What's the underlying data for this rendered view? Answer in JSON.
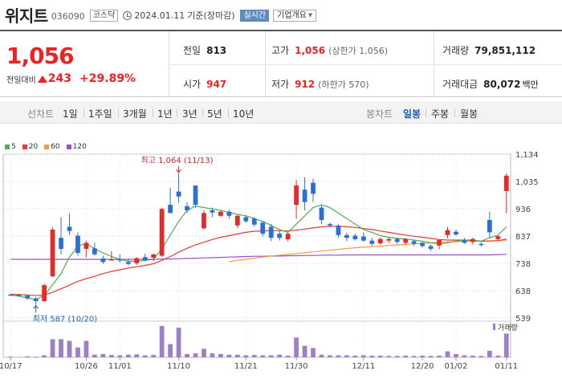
{
  "header": {
    "name": "위지트",
    "code": "036090",
    "market": "코스닥",
    "date": "2024.01.11",
    "status": "기준(장마감)",
    "realtime_label": "실시간",
    "company_label": "기업개요"
  },
  "price": {
    "current": "1,056",
    "change_label": "전일대비",
    "change": "243",
    "change_pct": "+29.89%"
  },
  "stats": {
    "prev_label": "전일",
    "prev": "813",
    "high_label": "고가",
    "high": "1,056",
    "high_sub": "(상한가 1,056)",
    "volume_label": "거래량",
    "volume": "79,851,112",
    "open_label": "시가",
    "open": "947",
    "low_label": "저가",
    "low": "912",
    "low_sub": "(하한가 570)",
    "amount_label": "거래대금",
    "amount": "80,072",
    "amount_unit": "백만"
  },
  "periods": {
    "line_chart": "선차트",
    "items": [
      "1일",
      "1주일",
      "3개월",
      "1년",
      "3년",
      "5년",
      "10년"
    ],
    "candle_chart": "봉차트",
    "candle_items": [
      "일봉",
      "주봉",
      "월봉"
    ],
    "active": "일봉"
  },
  "legend": [
    {
      "label": "5",
      "color": "#4caf50"
    },
    {
      "label": "20",
      "color": "#e53935"
    },
    {
      "label": "60",
      "color": "#f39c3a"
    },
    {
      "label": "120",
      "color": "#9c4fc7"
    }
  ],
  "chart_data": {
    "type": "candlestick",
    "y_ticks": [
      "1,134",
      "1,035",
      "936",
      "837",
      "738",
      "638",
      "539"
    ],
    "ylim": [
      539,
      1134
    ],
    "x_ticks": [
      "10/17",
      "10/26",
      "11/01",
      "11/10",
      "11/21",
      "11/30",
      "12/11",
      "12/20",
      "01/02",
      "01/11"
    ],
    "max_label": "최고 1,064 (11/13)",
    "min_label": "최저 587 (10/20)",
    "volume_label": "거래량",
    "candles": [
      {
        "o": 624,
        "h": 626,
        "l": 620,
        "c": 622
      },
      {
        "o": 623,
        "h": 627,
        "l": 619,
        "c": 621
      },
      {
        "o": 620,
        "h": 623,
        "l": 605,
        "c": 610
      },
      {
        "o": 610,
        "h": 614,
        "l": 587,
        "c": 600
      },
      {
        "o": 600,
        "h": 664,
        "l": 598,
        "c": 658
      },
      {
        "o": 690,
        "h": 868,
        "l": 688,
        "c": 860
      },
      {
        "o": 830,
        "h": 905,
        "l": 770,
        "c": 790
      },
      {
        "o": 870,
        "h": 918,
        "l": 840,
        "c": 855
      },
      {
        "o": 838,
        "h": 850,
        "l": 765,
        "c": 775
      },
      {
        "o": 790,
        "h": 820,
        "l": 760,
        "c": 812
      },
      {
        "o": 792,
        "h": 812,
        "l": 765,
        "c": 770
      },
      {
        "o": 755,
        "h": 765,
        "l": 735,
        "c": 742
      },
      {
        "o": 752,
        "h": 782,
        "l": 748,
        "c": 752
      },
      {
        "o": 752,
        "h": 770,
        "l": 740,
        "c": 748
      },
      {
        "o": 742,
        "h": 754,
        "l": 730,
        "c": 735
      },
      {
        "o": 738,
        "h": 760,
        "l": 732,
        "c": 756
      },
      {
        "o": 760,
        "h": 772,
        "l": 745,
        "c": 748
      },
      {
        "o": 758,
        "h": 772,
        "l": 745,
        "c": 770
      },
      {
        "o": 765,
        "h": 940,
        "l": 760,
        "c": 935
      },
      {
        "o": 950,
        "h": 1012,
        "l": 920,
        "c": 920
      },
      {
        "o": 998,
        "h": 1064,
        "l": 958,
        "c": 980
      },
      {
        "o": 945,
        "h": 960,
        "l": 920,
        "c": 930
      },
      {
        "o": 1020,
        "h": 1020,
        "l": 940,
        "c": 950
      },
      {
        "o": 865,
        "h": 930,
        "l": 860,
        "c": 920
      },
      {
        "o": 930,
        "h": 940,
        "l": 905,
        "c": 922
      },
      {
        "o": 910,
        "h": 930,
        "l": 905,
        "c": 925
      },
      {
        "o": 925,
        "h": 932,
        "l": 900,
        "c": 910
      },
      {
        "o": 875,
        "h": 915,
        "l": 865,
        "c": 910
      },
      {
        "o": 905,
        "h": 912,
        "l": 885,
        "c": 890
      },
      {
        "o": 900,
        "h": 905,
        "l": 870,
        "c": 878
      },
      {
        "o": 885,
        "h": 892,
        "l": 835,
        "c": 845
      },
      {
        "o": 870,
        "h": 880,
        "l": 818,
        "c": 830
      },
      {
        "o": 845,
        "h": 855,
        "l": 820,
        "c": 830
      },
      {
        "o": 825,
        "h": 850,
        "l": 818,
        "c": 845
      },
      {
        "o": 950,
        "h": 1040,
        "l": 900,
        "c": 1020
      },
      {
        "o": 1005,
        "h": 1050,
        "l": 930,
        "c": 960
      },
      {
        "o": 1030,
        "h": 1045,
        "l": 960,
        "c": 990
      },
      {
        "o": 940,
        "h": 950,
        "l": 880,
        "c": 895
      },
      {
        "o": 880,
        "h": 885,
        "l": 868,
        "c": 875
      },
      {
        "o": 875,
        "h": 880,
        "l": 830,
        "c": 840
      },
      {
        "o": 840,
        "h": 848,
        "l": 818,
        "c": 830
      },
      {
        "o": 838,
        "h": 845,
        "l": 820,
        "c": 825
      },
      {
        "o": 835,
        "h": 850,
        "l": 815,
        "c": 820
      },
      {
        "o": 820,
        "h": 830,
        "l": 800,
        "c": 808
      },
      {
        "o": 810,
        "h": 832,
        "l": 805,
        "c": 826
      },
      {
        "o": 820,
        "h": 830,
        "l": 810,
        "c": 826
      },
      {
        "o": 826,
        "h": 830,
        "l": 808,
        "c": 815
      },
      {
        "o": 812,
        "h": 830,
        "l": 805,
        "c": 826
      },
      {
        "o": 818,
        "h": 822,
        "l": 800,
        "c": 808
      },
      {
        "o": 812,
        "h": 818,
        "l": 795,
        "c": 800
      },
      {
        "o": 800,
        "h": 806,
        "l": 782,
        "c": 790
      },
      {
        "o": 802,
        "h": 822,
        "l": 788,
        "c": 822
      },
      {
        "o": 840,
        "h": 870,
        "l": 828,
        "c": 858
      },
      {
        "o": 852,
        "h": 860,
        "l": 838,
        "c": 842
      },
      {
        "o": 822,
        "h": 830,
        "l": 808,
        "c": 812
      },
      {
        "o": 815,
        "h": 830,
        "l": 806,
        "c": 826
      },
      {
        "o": 808,
        "h": 815,
        "l": 798,
        "c": 805
      },
      {
        "o": 895,
        "h": 925,
        "l": 830,
        "c": 850
      },
      {
        "o": 825,
        "h": 838,
        "l": 818,
        "c": 836
      },
      {
        "o": 1000,
        "h": 1064,
        "l": 920,
        "c": 1056
      }
    ],
    "ma5": [
      622,
      618,
      612,
      606,
      620,
      660,
      700,
      760,
      800,
      810,
      790,
      775,
      762,
      752,
      745,
      745,
      748,
      752,
      790,
      840,
      890,
      930,
      945,
      940,
      935,
      930,
      922,
      915,
      910,
      900,
      890,
      875,
      860,
      850,
      880,
      910,
      940,
      950,
      940,
      920,
      900,
      880,
      860,
      850,
      838,
      832,
      828,
      825,
      822,
      818,
      812,
      808,
      812,
      818,
      822,
      822,
      818,
      830,
      840,
      870
    ],
    "ma20": [
      625,
      624,
      622,
      620,
      622,
      632,
      645,
      658,
      672,
      682,
      690,
      700,
      708,
      714,
      720,
      725,
      730,
      736,
      748,
      762,
      778,
      792,
      804,
      814,
      824,
      832,
      838,
      844,
      850,
      854,
      855,
      856,
      856,
      855,
      858,
      862,
      866,
      870,
      872,
      872,
      870,
      868,
      864,
      860,
      855,
      850,
      845,
      840,
      836,
      832,
      828,
      824,
      822,
      822,
      822,
      820,
      818,
      818,
      820,
      825
    ],
    "ma60": [
      null,
      null,
      null,
      null,
      null,
      null,
      null,
      null,
      null,
      null,
      null,
      null,
      null,
      null,
      null,
      null,
      null,
      null,
      null,
      null,
      null,
      null,
      null,
      null,
      null,
      null,
      743,
      748,
      752,
      756,
      760,
      764,
      767,
      770,
      773,
      776,
      779,
      782,
      785,
      788,
      791,
      794,
      796,
      798,
      800,
      802,
      804,
      806,
      808,
      810,
      812,
      814,
      815,
      816,
      817,
      818,
      818,
      819,
      820,
      822
    ],
    "ma120": [
      752,
      752,
      752,
      752,
      752,
      752,
      752,
      752,
      752,
      752,
      752,
      752,
      752,
      752,
      752,
      752,
      752,
      752,
      753,
      753,
      754,
      755,
      756,
      757,
      758,
      759,
      760,
      761,
      762,
      763,
      763,
      764,
      764,
      765,
      765,
      766,
      766,
      767,
      767,
      767,
      768,
      768,
      768,
      768,
      768,
      768,
      768,
      768,
      768,
      768,
      768,
      768,
      768,
      768,
      768,
      768,
      768,
      768,
      769,
      770
    ],
    "volumes": [
      0.02,
      0.01,
      0.03,
      0.02,
      0.06,
      0.55,
      0.55,
      0.5,
      0.3,
      0.5,
      0.08,
      0.1,
      0.07,
      0.06,
      0.08,
      0.09,
      0.06,
      0.07,
      0.95,
      0.4,
      0.9,
      0.1,
      0.12,
      0.26,
      0.12,
      0.1,
      0.08,
      0.08,
      0.06,
      0.07,
      0.06,
      0.06,
      0.08,
      0.05,
      0.6,
      0.35,
      0.28,
      0.08,
      0.06,
      0.06,
      0.06,
      0.05,
      0.06,
      0.05,
      0.05,
      0.04,
      0.04,
      0.05,
      0.04,
      0.05,
      0.04,
      0.05,
      0.18,
      0.1,
      0.06,
      0.05,
      0.04,
      0.2,
      0.05,
      0.72
    ]
  }
}
